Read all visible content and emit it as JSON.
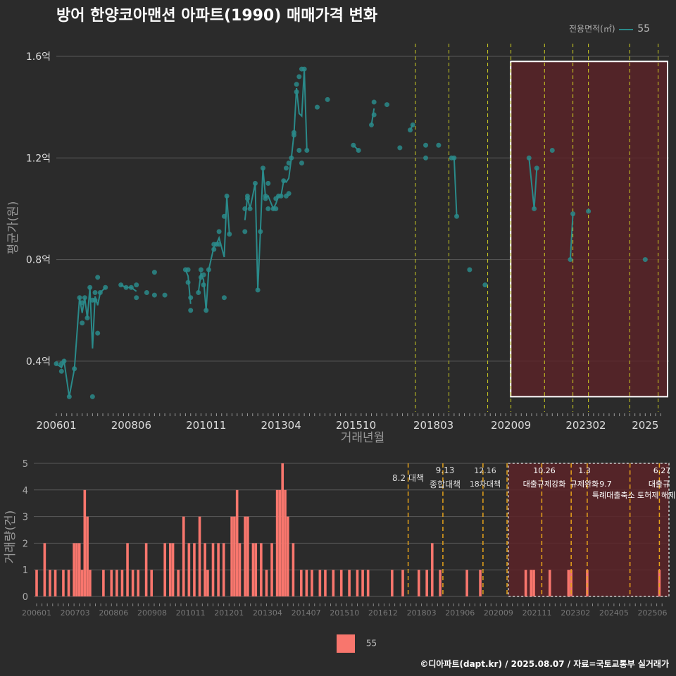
{
  "title": "방어 한양코아맨션 아파트(1990) 매매가격 변화",
  "footer": "©디아파트(dapt.kr) / 2025.08.07 / 자료=국토교통부 실거래가",
  "colors": {
    "line": "#2a8a8a",
    "bar": "#f8766d",
    "vline_top": "#cccc22",
    "vline_bottom": "#e6a21a",
    "highlight": "#5c2328"
  },
  "legend_top": {
    "title": "전용면적(㎡)",
    "label": "55"
  },
  "legend_bottom": {
    "label": "55"
  },
  "chart_data": [
    {
      "type": "line",
      "ylabel": "평균가(원)",
      "xlabel": "거래년월",
      "ylim": [
        0.2,
        1.65
      ],
      "y_ticks": [
        0.4,
        0.8,
        1.2,
        1.6
      ],
      "y_tick_labels": [
        "0.4억",
        "0.8억",
        "1.2억",
        "1.6억"
      ],
      "x_tick_labels": [
        "200601",
        "200806",
        "201011",
        "201304",
        "201510",
        "201803",
        "202009",
        "202302",
        "2025"
      ],
      "series": [
        {
          "name": "55",
          "points": [
            [
              "2006-01",
              0.39
            ],
            [
              "2006-03",
              0.36
            ],
            [
              "2006-03",
              0.39
            ],
            [
              "2006-04",
              0.4
            ],
            [
              "2006-06",
              0.26
            ],
            [
              "2006-08",
              0.37
            ],
            [
              "2006-10",
              0.65
            ],
            [
              "2006-11",
              0.55
            ],
            [
              "2006-11",
              0.63
            ],
            [
              "2006-12",
              0.65
            ],
            [
              "2007-01",
              0.57
            ],
            [
              "2007-02",
              0.69
            ],
            [
              "2007-03",
              0.64
            ],
            [
              "2007-03",
              0.26
            ],
            [
              "2007-04",
              0.67
            ],
            [
              "2007-04",
              0.64
            ],
            [
              "2007-05",
              0.51
            ],
            [
              "2007-05",
              0.73
            ],
            [
              "2007-06",
              0.67
            ],
            [
              "2007-08",
              0.69
            ],
            [
              "2008-02",
              0.7
            ],
            [
              "2008-04",
              0.69
            ],
            [
              "2008-06",
              0.69
            ],
            [
              "2008-08",
              0.7
            ],
            [
              "2008-08",
              0.65
            ],
            [
              "2008-12",
              0.67
            ],
            [
              "2009-03",
              0.75
            ],
            [
              "2009-03",
              0.66
            ],
            [
              "2009-07",
              0.66
            ],
            [
              "2010-03",
              0.76
            ],
            [
              "2010-04",
              0.76
            ],
            [
              "2010-04",
              0.71
            ],
            [
              "2010-05",
              0.6
            ],
            [
              "2010-05",
              0.65
            ],
            [
              "2010-08",
              0.67
            ],
            [
              "2010-09",
              0.76
            ],
            [
              "2010-09",
              0.73
            ],
            [
              "2010-10",
              0.74
            ],
            [
              "2010-10",
              0.7
            ],
            [
              "2010-11",
              0.6
            ],
            [
              "2010-12",
              0.76
            ],
            [
              "2011-02",
              0.86
            ],
            [
              "2011-02",
              0.84
            ],
            [
              "2011-03",
              0.86
            ],
            [
              "2011-04",
              0.91
            ],
            [
              "2011-04",
              0.86
            ],
            [
              "2011-06",
              0.65
            ],
            [
              "2011-06",
              0.97
            ],
            [
              "2011-07",
              1.05
            ],
            [
              "2011-08",
              0.9
            ],
            [
              "2012-02",
              0.91
            ],
            [
              "2012-02",
              1.0
            ],
            [
              "2012-03",
              1.04
            ],
            [
              "2012-03",
              1.05
            ],
            [
              "2012-04",
              1.0
            ],
            [
              "2012-06",
              1.1
            ],
            [
              "2012-07",
              0.68
            ],
            [
              "2012-08",
              0.91
            ],
            [
              "2012-09",
              1.16
            ],
            [
              "2012-10",
              1.05
            ],
            [
              "2012-10",
              1.04
            ],
            [
              "2012-11",
              1.0
            ],
            [
              "2012-11",
              1.1
            ],
            [
              "2013-01",
              1.0
            ],
            [
              "2013-02",
              1.0
            ],
            [
              "2013-02",
              1.04
            ],
            [
              "2013-03",
              1.05
            ],
            [
              "2013-04",
              1.05
            ],
            [
              "2013-05",
              1.11
            ],
            [
              "2013-06",
              1.05
            ],
            [
              "2013-06",
              1.16
            ],
            [
              "2013-07",
              1.06
            ],
            [
              "2013-07",
              1.18
            ],
            [
              "2013-08",
              1.2
            ],
            [
              "2013-09",
              1.3
            ],
            [
              "2013-09",
              1.29
            ],
            [
              "2013-10",
              1.46
            ],
            [
              "2013-10",
              1.49
            ],
            [
              "2013-11",
              1.23
            ],
            [
              "2013-11",
              1.52
            ],
            [
              "2013-12",
              1.55
            ],
            [
              "2013-12",
              1.18
            ],
            [
              "2014-01",
              1.55
            ],
            [
              "2014-02",
              1.23
            ],
            [
              "2014-06",
              1.4
            ],
            [
              "2014-10",
              1.43
            ],
            [
              "2015-08",
              1.25
            ],
            [
              "2015-10",
              1.23
            ],
            [
              "2016-03",
              1.33
            ],
            [
              "2016-04",
              1.37
            ],
            [
              "2016-04",
              1.42
            ],
            [
              "2016-09",
              1.41
            ],
            [
              "2017-02",
              1.24
            ],
            [
              "2017-06",
              1.31
            ],
            [
              "2017-07",
              1.33
            ],
            [
              "2017-12",
              1.25
            ],
            [
              "2017-12",
              1.2
            ],
            [
              "2018-05",
              1.25
            ],
            [
              "2018-10",
              1.2
            ],
            [
              "2018-11",
              1.2
            ],
            [
              "2018-12",
              0.97
            ],
            [
              "2019-05",
              0.76
            ],
            [
              "2019-11",
              0.7
            ],
            [
              "2021-04",
              1.2
            ],
            [
              "2021-06",
              1.0
            ],
            [
              "2021-07",
              1.16
            ],
            [
              "2022-01",
              1.23
            ],
            [
              "2022-08",
              0.8
            ],
            [
              "2022-09",
              0.98
            ],
            [
              "2023-03",
              0.99
            ],
            [
              "2025-01",
              0.8
            ]
          ]
        }
      ],
      "policy_lines": [
        "2017-08",
        "2018-09",
        "2019-12",
        "2020-09",
        "2021-10",
        "2022-09",
        "2023-03",
        "2024-07",
        "2025-06"
      ],
      "highlight": [
        "2020-10",
        "2025-06"
      ]
    },
    {
      "type": "bar",
      "ylabel": "거래량(건)",
      "ylim": [
        0,
        5
      ],
      "y_ticks": [
        0,
        1,
        2,
        3,
        4,
        5
      ],
      "y_tick_labels": [
        "0",
        "1",
        "2",
        "3",
        "4",
        "5"
      ],
      "x_tick_labels": [
        "200601",
        "200703",
        "200806",
        "200908",
        "201011",
        "201201",
        "201304",
        "201407",
        "201510",
        "201612",
        "201803",
        "201906",
        "202009",
        "202111",
        "202302",
        "202405",
        "202506"
      ],
      "series": [
        {
          "name": "55",
          "bars": [
            [
              "2006-01",
              1
            ],
            [
              "2006-04",
              2
            ],
            [
              "2006-06",
              1
            ],
            [
              "2006-08",
              1
            ],
            [
              "2006-11",
              1
            ],
            [
              "2007-01",
              1
            ],
            [
              "2007-03",
              2
            ],
            [
              "2007-04",
              2
            ],
            [
              "2007-05",
              2
            ],
            [
              "2007-06",
              1
            ],
            [
              "2007-07",
              4
            ],
            [
              "2007-08",
              3
            ],
            [
              "2007-09",
              1
            ],
            [
              "2008-02",
              1
            ],
            [
              "2008-05",
              1
            ],
            [
              "2008-07",
              1
            ],
            [
              "2008-09",
              1
            ],
            [
              "2008-11",
              2
            ],
            [
              "2009-01",
              1
            ],
            [
              "2009-03",
              1
            ],
            [
              "2009-06",
              2
            ],
            [
              "2009-08",
              1
            ],
            [
              "2010-01",
              2
            ],
            [
              "2010-03",
              2
            ],
            [
              "2010-04",
              2
            ],
            [
              "2010-06",
              1
            ],
            [
              "2010-08",
              3
            ],
            [
              "2010-10",
              2
            ],
            [
              "2010-12",
              2
            ],
            [
              "2011-02",
              3
            ],
            [
              "2011-04",
              2
            ],
            [
              "2011-05",
              1
            ],
            [
              "2011-07",
              2
            ],
            [
              "2011-09",
              2
            ],
            [
              "2011-11",
              2
            ],
            [
              "2012-02",
              3
            ],
            [
              "2012-03",
              3
            ],
            [
              "2012-04",
              4
            ],
            [
              "2012-05",
              2
            ],
            [
              "2012-07",
              3
            ],
            [
              "2012-08",
              3
            ],
            [
              "2012-10",
              2
            ],
            [
              "2012-11",
              2
            ],
            [
              "2013-01",
              2
            ],
            [
              "2013-03",
              1
            ],
            [
              "2013-05",
              2
            ],
            [
              "2013-07",
              4
            ],
            [
              "2013-08",
              4
            ],
            [
              "2013-09",
              5
            ],
            [
              "2013-10",
              4
            ],
            [
              "2013-11",
              3
            ],
            [
              "2014-01",
              2
            ],
            [
              "2014-04",
              1
            ],
            [
              "2014-06",
              1
            ],
            [
              "2014-08",
              1
            ],
            [
              "2014-11",
              1
            ],
            [
              "2015-01",
              1
            ],
            [
              "2015-04",
              1
            ],
            [
              "2015-07",
              1
            ],
            [
              "2015-10",
              1
            ],
            [
              "2016-01",
              1
            ],
            [
              "2016-03",
              1
            ],
            [
              "2016-05",
              1
            ],
            [
              "2017-02",
              1
            ],
            [
              "2017-06",
              1
            ],
            [
              "2017-12",
              1
            ],
            [
              "2018-03",
              1
            ],
            [
              "2018-05",
              2
            ],
            [
              "2018-08",
              1
            ],
            [
              "2019-06",
              1
            ],
            [
              "2019-11",
              1
            ],
            [
              "2021-04",
              1
            ],
            [
              "2021-06",
              1
            ],
            [
              "2021-07",
              1
            ],
            [
              "2022-01",
              1
            ],
            [
              "2022-08",
              1
            ],
            [
              "2022-09",
              1
            ],
            [
              "2023-03",
              1
            ],
            [
              "2025-06",
              1
            ]
          ]
        }
      ],
      "policy_lines": [
        "2017-08",
        "2018-09",
        "2019-12",
        "2020-09",
        "2021-10",
        "2022-09",
        "2023-03",
        "2024-07",
        "2025-06"
      ],
      "annotations": [
        {
          "date": "10.26",
          "label": "대출규제강화"
        },
        {
          "date": "1.3",
          "label": "규제완화"
        },
        {
          "date": "9.7",
          "label": "특례대출축소 토허제 해제"
        },
        {
          "date": "6.27",
          "label": "대출규"
        },
        {
          "date": "8.2",
          "label": "대책"
        },
        {
          "date": "9.13",
          "label": "종합대책"
        },
        {
          "date": "12.16",
          "label": "18차대책"
        }
      ],
      "highlight": [
        "2020-10",
        "2025-06"
      ]
    }
  ]
}
